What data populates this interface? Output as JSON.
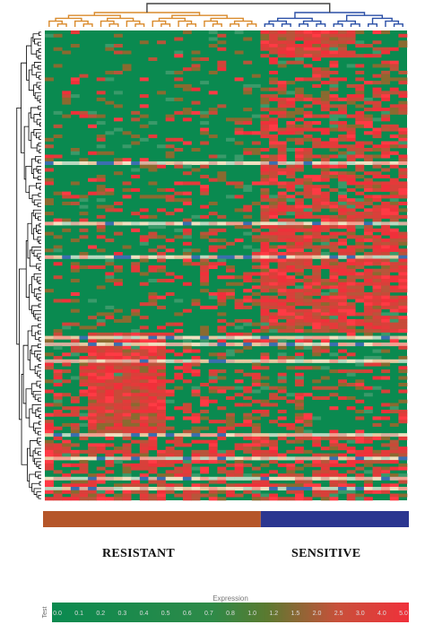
{
  "chart_data": {
    "type": "heatmap",
    "title": "",
    "xlabel": "",
    "ylabel": "",
    "samples": 42,
    "genes": 140,
    "groups": [
      {
        "name": "RESISTANT",
        "count": 25,
        "color": "#b5562a",
        "dendrogram_color": "#d98a2b"
      },
      {
        "name": "SENSITIVE",
        "count": 17,
        "color": "#2b3690",
        "dendrogram_color": "#2a4fa6"
      }
    ],
    "row_dendrogram_color": "#000000",
    "colorscale": {
      "title": "Expression",
      "low_color": "#0a8a50",
      "mid_color": "#5a7a30",
      "high_color": "#f0303a",
      "ticks": [
        "0.0",
        "0.1",
        "0.2",
        "0.3",
        "0.4",
        "0.5",
        "0.6",
        "0.7",
        "0.8",
        "1.0",
        "1.2",
        "1.5",
        "2.0",
        "2.5",
        "3.0",
        "4.0",
        "5.0"
      ],
      "end_label": "Test"
    }
  }
}
